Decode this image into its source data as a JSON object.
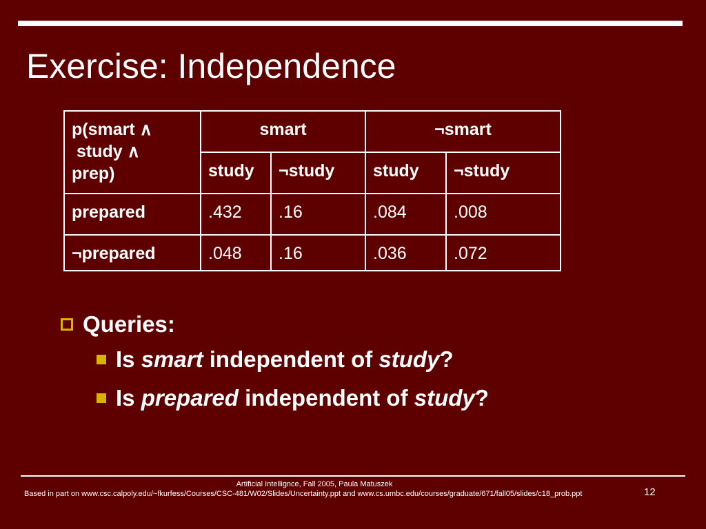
{
  "slide": {
    "title": "Exercise: Independence",
    "table": {
      "corner_label_line1": "p(smart ∧",
      "corner_label_line2": " study ∧",
      "corner_label_line3": "prep)",
      "group_headers": [
        "smart",
        "¬smart"
      ],
      "sub_headers": [
        "study",
        "¬study",
        "study",
        "¬study"
      ],
      "rows": [
        {
          "label": "prepared",
          "values": [
            ".432",
            ".16",
            ".084",
            ".008"
          ]
        },
        {
          "label": "¬prepared",
          "values": [
            ".048",
            ".16",
            ".036",
            ".072"
          ]
        }
      ]
    },
    "queries": {
      "heading": "Queries:",
      "q1": {
        "prefix": "Is ",
        "var": "smart",
        "mid": " independent of ",
        "var2": "study",
        "suffix": "?"
      },
      "q2": {
        "prefix": "Is ",
        "var": "prepared",
        "mid": " independent of ",
        "var2": "study",
        "suffix": "?"
      }
    },
    "footer": {
      "course": "Artificial Intellignce, Fall 2005, Paula Matuszek",
      "source": "Based in part on www.csc.calpoly.edu/~fkurfess/Courses/CSC-481/W02/Slides/Uncertainty.ppt and www.cs.umbc.edu/courses/graduate/671/fall05/slides/c18_prob.ppt",
      "page_number": "12"
    },
    "colors": {
      "background": "#5e0000",
      "bullet": "#d9b300",
      "text": "#ffffff"
    }
  }
}
